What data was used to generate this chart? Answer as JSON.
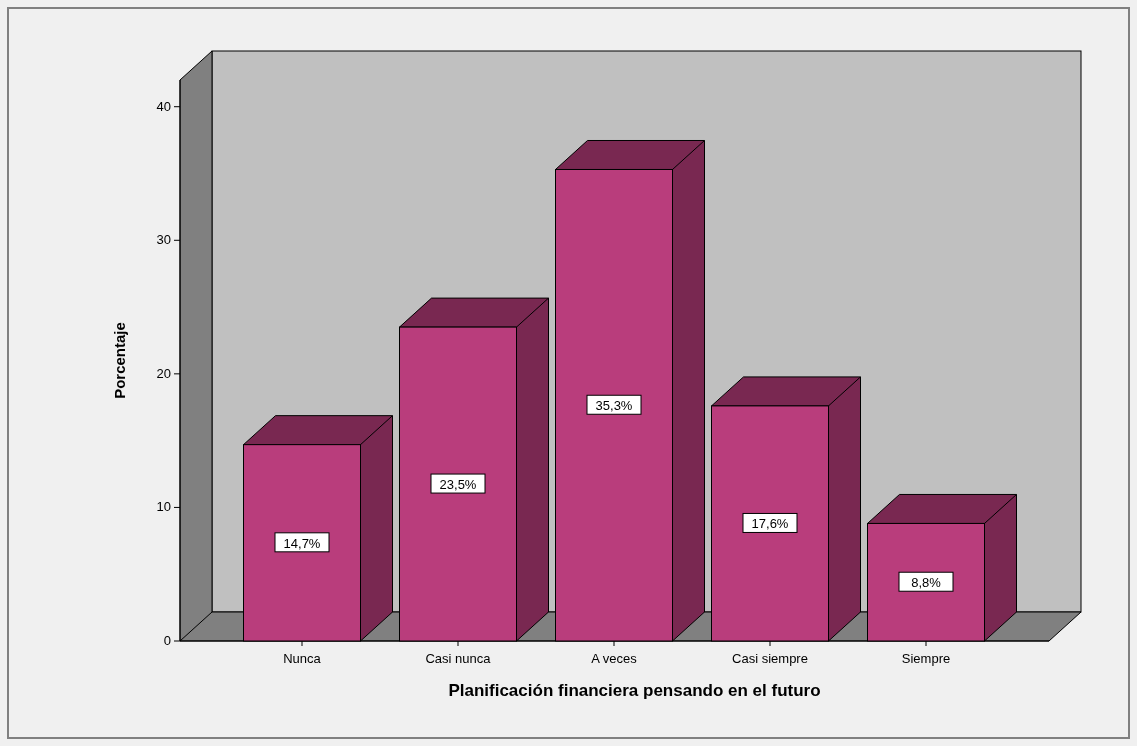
{
  "chart_data": {
    "type": "bar",
    "xlabel": "Planificación financiera pensando en el futuro",
    "ylabel": "Porcentaje",
    "categories": [
      "Nunca",
      "Casi nunca",
      "A veces",
      "Casi siempre",
      "Siempre"
    ],
    "values": [
      14.7,
      23.5,
      35.3,
      17.6,
      8.8
    ],
    "value_labels": [
      "14,7%",
      "23,5%",
      "35,3%",
      "17,6%",
      "8,8%"
    ],
    "color": "#b93d7c",
    "ylim": [
      0,
      42
    ],
    "yticks": [
      0,
      10,
      20,
      30,
      40
    ],
    "grid": false
  }
}
